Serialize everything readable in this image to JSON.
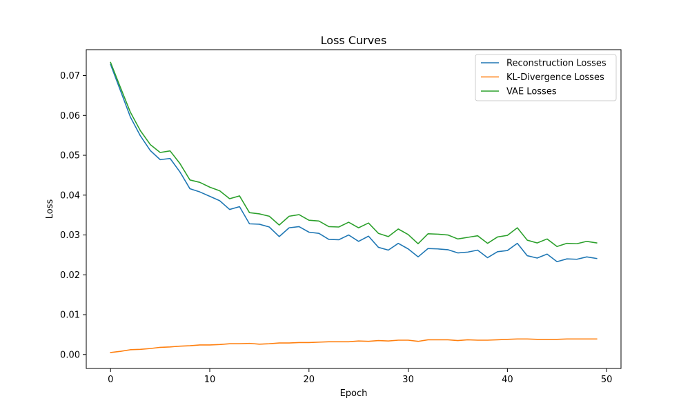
{
  "chart_data": {
    "type": "line",
    "title": "Loss Curves",
    "xlabel": "Epoch",
    "ylabel": "Loss",
    "xlim": [
      -2.45,
      51.45
    ],
    "ylim": [
      -0.0035,
      0.0765
    ],
    "xticks": [
      0,
      10,
      20,
      30,
      40,
      50
    ],
    "yticks": [
      0.0,
      0.01,
      0.02,
      0.03,
      0.04,
      0.05,
      0.06,
      0.07
    ],
    "xtick_labels": [
      "0",
      "10",
      "20",
      "30",
      "40",
      "50"
    ],
    "ytick_labels": [
      "0.00",
      "0.01",
      "0.02",
      "0.03",
      "0.04",
      "0.05",
      "0.06",
      "0.07"
    ],
    "grid": false,
    "legend": "top-right",
    "x": [
      0,
      1,
      2,
      3,
      4,
      5,
      6,
      7,
      8,
      9,
      10,
      11,
      12,
      13,
      14,
      15,
      16,
      17,
      18,
      19,
      20,
      21,
      22,
      23,
      24,
      25,
      26,
      27,
      28,
      29,
      30,
      31,
      32,
      33,
      34,
      35,
      36,
      37,
      38,
      39,
      40,
      41,
      42,
      43,
      44,
      45,
      46,
      47,
      48,
      49
    ],
    "series": [
      {
        "name": "Reconstruction Losses",
        "color": "#1f77b4",
        "values": [
          0.0728,
          0.0662,
          0.0596,
          0.0549,
          0.0512,
          0.0489,
          0.0492,
          0.0458,
          0.0416,
          0.0408,
          0.0397,
          0.0386,
          0.0364,
          0.0371,
          0.0328,
          0.0327,
          0.032,
          0.0296,
          0.0318,
          0.0321,
          0.0307,
          0.0304,
          0.0289,
          0.0288,
          0.03,
          0.0284,
          0.0297,
          0.0269,
          0.0262,
          0.0279,
          0.0265,
          0.0245,
          0.0266,
          0.0265,
          0.0263,
          0.0255,
          0.0257,
          0.0262,
          0.0243,
          0.0258,
          0.0261,
          0.0279,
          0.0248,
          0.0242,
          0.0252,
          0.0233,
          0.024,
          0.0239,
          0.0245,
          0.0241
        ]
      },
      {
        "name": "KL-Divergence Losses",
        "color": "#ff7f0e",
        "values": [
          0.0005,
          0.0008,
          0.0012,
          0.0013,
          0.0015,
          0.0018,
          0.0019,
          0.0021,
          0.0022,
          0.0024,
          0.0024,
          0.0025,
          0.0027,
          0.0027,
          0.0028,
          0.0026,
          0.0027,
          0.0029,
          0.0029,
          0.003,
          0.003,
          0.0031,
          0.0032,
          0.0032,
          0.0032,
          0.0034,
          0.0033,
          0.0035,
          0.0034,
          0.0036,
          0.0036,
          0.0033,
          0.0037,
          0.0037,
          0.0037,
          0.0035,
          0.0037,
          0.0036,
          0.0036,
          0.0037,
          0.0038,
          0.0039,
          0.0039,
          0.0038,
          0.0038,
          0.0038,
          0.0039,
          0.0039,
          0.0039,
          0.0039
        ]
      },
      {
        "name": "VAE Losses",
        "color": "#2ca02c",
        "values": [
          0.0733,
          0.067,
          0.0608,
          0.0562,
          0.0527,
          0.0507,
          0.0511,
          0.0479,
          0.0438,
          0.0432,
          0.042,
          0.0411,
          0.0391,
          0.0398,
          0.0356,
          0.0353,
          0.0347,
          0.0325,
          0.0347,
          0.0351,
          0.0337,
          0.0335,
          0.0321,
          0.032,
          0.0332,
          0.0318,
          0.033,
          0.0304,
          0.0296,
          0.0315,
          0.0301,
          0.0278,
          0.0303,
          0.0302,
          0.03,
          0.029,
          0.0294,
          0.0298,
          0.0279,
          0.0295,
          0.0299,
          0.0318,
          0.0287,
          0.028,
          0.029,
          0.0271,
          0.0279,
          0.0278,
          0.0284,
          0.028
        ]
      }
    ]
  }
}
